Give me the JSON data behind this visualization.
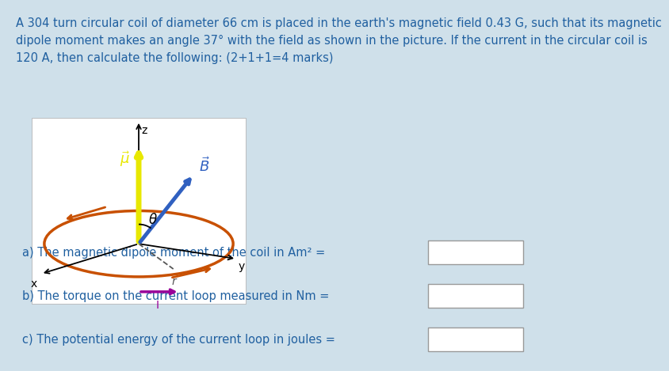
{
  "background_color": "#cfe0ea",
  "title_text": "A 304 turn circular coil of diameter 66 cm is placed in the earth's magnetic field 0.43 G, such that its magnetic\ndipole moment makes an angle 37° with the field as shown in the picture. If the current in the circular coil is\n120 A, then calculate the following: (2+1+1=4 marks)",
  "title_fontsize": 10.5,
  "title_color": "#2060a0",
  "diagram_bg": "#ffffff",
  "qa_lines": [
    "a) The magnetic dipole moment of the coil in Am² =",
    "b) The torque on the current loop measured in Nm =",
    "c) The potential energy of the current loop in joules ="
  ],
  "qa_color": "#2060a0",
  "qa_fontsize": 10.5,
  "coil_color": "#c85000",
  "mu_arrow_color": "#e8e800",
  "B_arrow_color": "#3060c0",
  "axis_color": "#000000",
  "dashed_color": "#555555",
  "theta_arc_color": "#000000",
  "I_arrow_color": "#990099"
}
